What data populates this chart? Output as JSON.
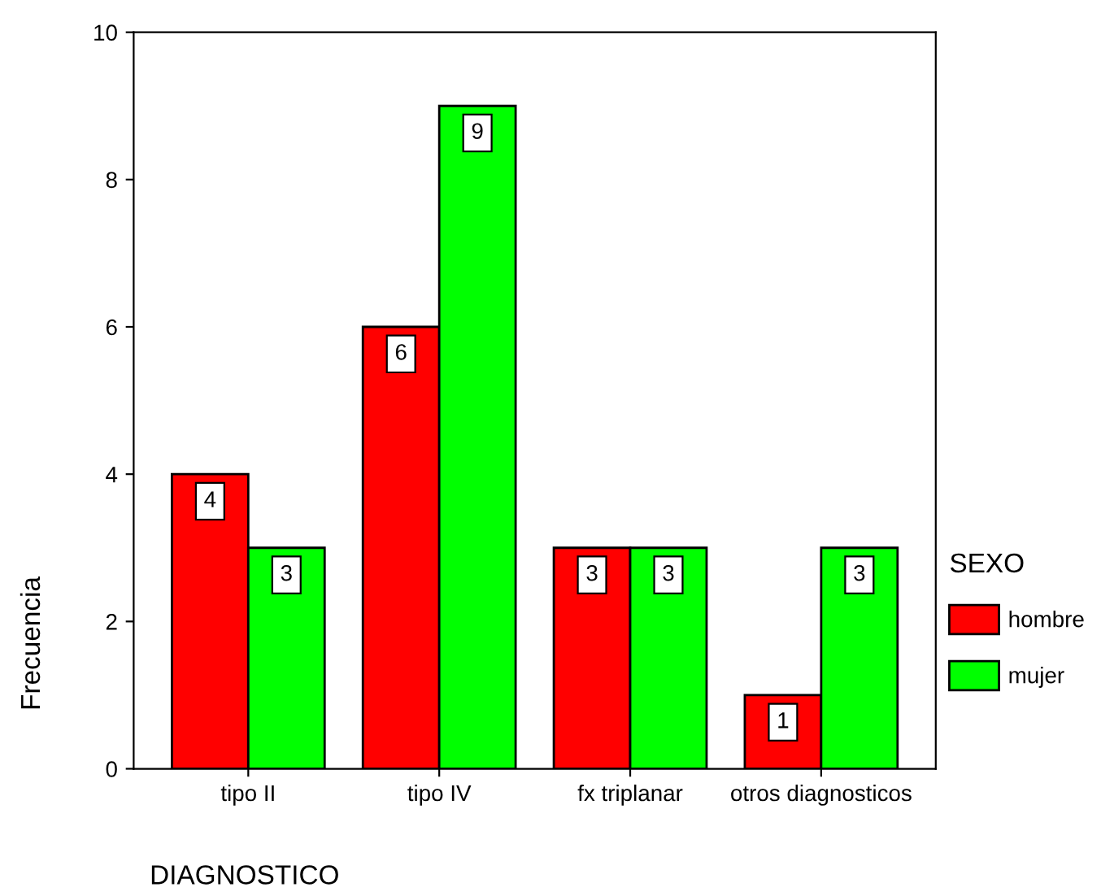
{
  "chart_data": {
    "type": "bar",
    "xlabel": "DIAGNOSTICO",
    "ylabel": "Frecuencia",
    "legend_title": "SEXO",
    "categories": [
      "tipo II",
      "tipo IV",
      "fx triplanar",
      "otros diagnosticos"
    ],
    "series": [
      {
        "name": "hombre",
        "color": "#ff0000",
        "values": [
          4,
          6,
          3,
          1
        ]
      },
      {
        "name": "mujer",
        "color": "#00ff00",
        "values": [
          3,
          9,
          3,
          3
        ]
      }
    ],
    "ylim": [
      0,
      10
    ],
    "yticks": [
      0,
      2,
      4,
      6,
      8,
      10
    ],
    "grid": false,
    "legend": "right",
    "data_labels": true
  }
}
